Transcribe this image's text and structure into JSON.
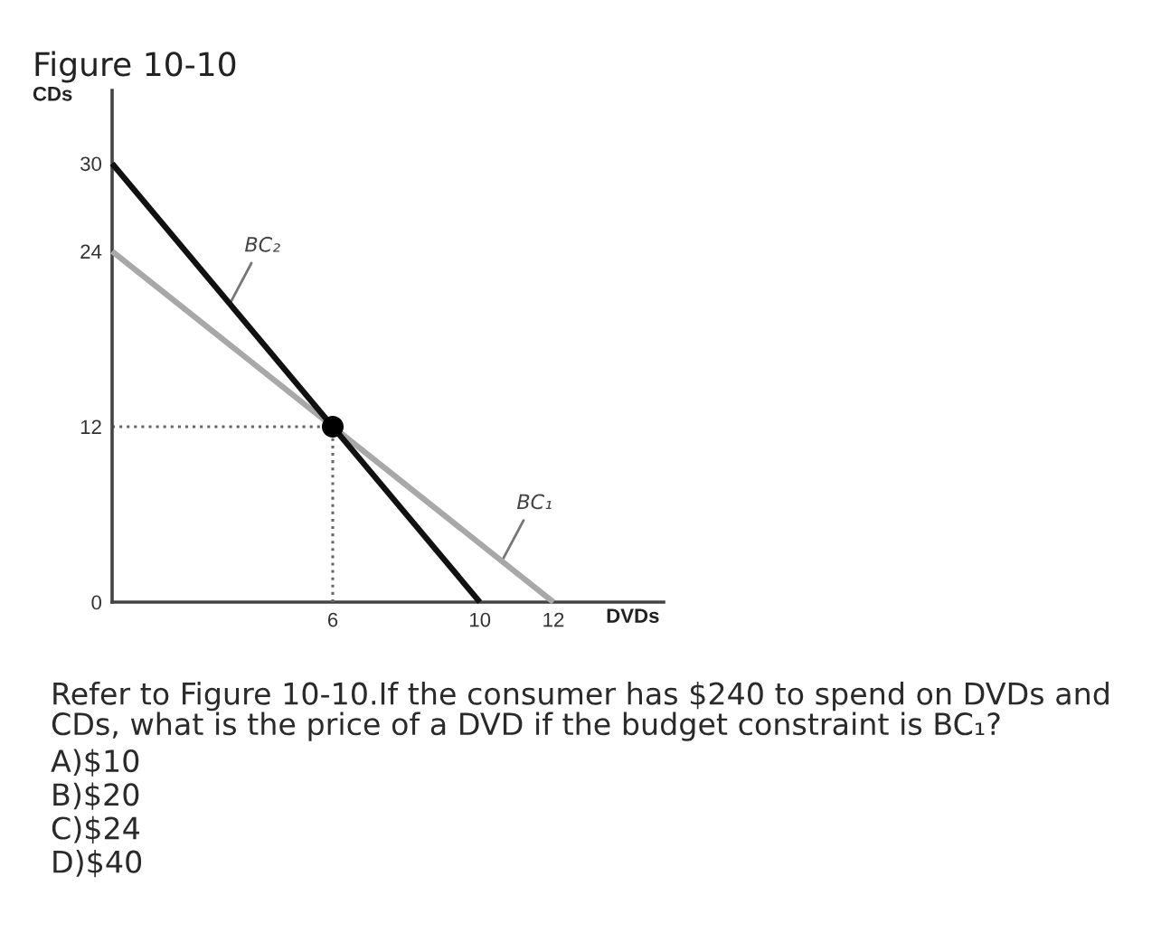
{
  "chart_data": {
    "type": "line",
    "title": "Figure 10-10",
    "xlabel": "DVDs",
    "ylabel": "CDs",
    "xlim": [
      0,
      15
    ],
    "ylim": [
      0,
      35
    ],
    "xticks": [
      6,
      10,
      12
    ],
    "yticks": [
      0,
      12,
      24,
      30
    ],
    "series": [
      {
        "color": "#666666",
        "x": [
          0,
          6
        ],
        "values": [
          12,
          12
        ],
        "line_style": "dotted"
      },
      {
        "color": "#666666",
        "x": [
          6,
          6
        ],
        "values": [
          0,
          12
        ],
        "line_style": "dotted"
      },
      {
        "color": "#a8a8a8",
        "x": [
          0,
          12
        ],
        "values": [
          24,
          0
        ],
        "line_style": "solid"
      },
      {
        "color": "#111111",
        "x": [
          0,
          10
        ],
        "values": [
          30,
          0
        ],
        "line_style": "solid"
      },
      {
        "type": "scatter",
        "color": "#000000",
        "x": [
          6
        ],
        "values": [
          12
        ],
        "marker": "circle"
      }
    ],
    "annotations": [
      {
        "text": "BC₂",
        "x": 3.2,
        "y": 20.4
      },
      {
        "text": "BC₁",
        "x": 10.6,
        "y": 2.8
      },
      "Refer to Figure 10-10.If the consumer has $240 to spend on DVDs and CDs, what is the price of a DVD if the budget constraint is BC₁?",
      "A)$10",
      "B)$20",
      "C)$24",
      "D)$40"
    ]
  }
}
